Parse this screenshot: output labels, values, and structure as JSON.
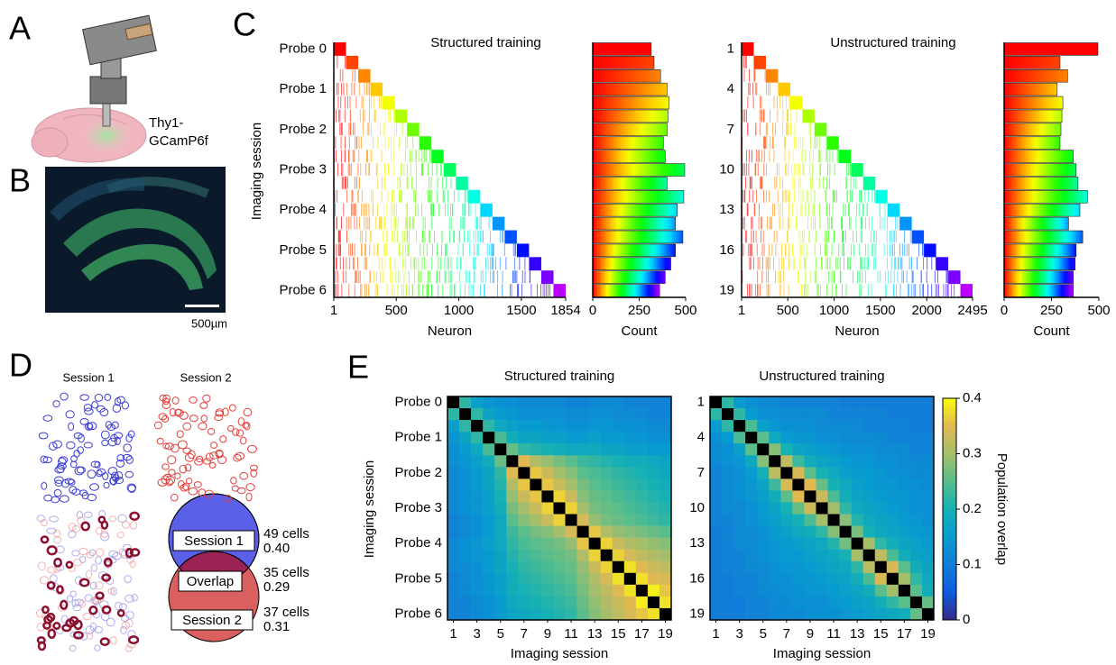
{
  "panel_a": {
    "label": "A",
    "text_line1": "Thy1-",
    "text_line2": "GCamP6f"
  },
  "panel_b": {
    "label": "B",
    "scale_bar": "500µm"
  },
  "panel_c": {
    "label": "C",
    "y_axis_label": "Imaging session",
    "structured": {
      "title": "Structured training",
      "y_labels": [
        "Probe 0",
        "Probe 1",
        "Probe 2",
        "Probe 3",
        "Probe 4",
        "Probe 5",
        "Probe 6"
      ],
      "x_label": "Neuron",
      "xlim": [
        1,
        1854
      ],
      "xticks": [
        1,
        500,
        1000,
        1500,
        1854
      ],
      "count_label": "Count",
      "count_lim": [
        0,
        500
      ],
      "count_ticks": [
        0,
        250,
        500
      ],
      "counts": [
        315,
        330,
        365,
        400,
        410,
        405,
        400,
        380,
        390,
        495,
        400,
        490,
        455,
        445,
        485,
        445,
        420,
        390,
        360
      ]
    },
    "unstructured": {
      "title": "Unstructured training",
      "y_labels": [
        1,
        4,
        7,
        10,
        13,
        16,
        19
      ],
      "x_label": "Neuron",
      "xlim": [
        1,
        2495
      ],
      "xticks": [
        1,
        500,
        1000,
        1500,
        2000,
        2495
      ],
      "count_label": "Count",
      "count_lim": [
        0,
        500
      ],
      "count_ticks": [
        0,
        250,
        500
      ],
      "counts": [
        495,
        295,
        335,
        280,
        310,
        305,
        300,
        295,
        365,
        380,
        390,
        440,
        400,
        340,
        415,
        380,
        375,
        365,
        365
      ]
    }
  },
  "panel_d": {
    "label": "D",
    "session1": "Session 1",
    "session2": "Session 2",
    "venn": [
      "Session 1",
      "Overlap",
      "Session 2"
    ],
    "stats": [
      [
        "49 cells",
        "0.40"
      ],
      [
        "35 cells",
        "0.29"
      ],
      [
        "37 cells",
        "0.31"
      ]
    ]
  },
  "panel_e": {
    "label": "E",
    "y_label": "Imaging session",
    "colorbar": {
      "label": "Population overlap",
      "lim": [
        0,
        0.4
      ],
      "ticks": [
        0,
        0.1,
        0.2,
        0.3,
        0.4
      ]
    },
    "structured": {
      "title": "Structured training",
      "x_label": "Imaging session",
      "xticks": [
        1,
        3,
        5,
        7,
        9,
        11,
        13,
        15,
        17,
        19
      ],
      "y_labels": [
        "Probe 0",
        "Probe 1",
        "Probe 2",
        "Probe 3",
        "Probe 4",
        "Probe 5",
        "Probe 6"
      ],
      "matrix": [
        [
          null,
          0.22,
          0.16,
          0.14,
          0.13,
          0.13,
          0.12,
          0.12,
          0.12,
          0.12,
          0.11,
          0.11,
          0.12,
          0.12,
          0.12,
          0.11,
          0.11,
          0.11,
          0.11
        ],
        [
          0.22,
          null,
          0.22,
          0.17,
          0.15,
          0.14,
          0.13,
          0.13,
          0.13,
          0.13,
          0.12,
          0.12,
          0.13,
          0.13,
          0.12,
          0.12,
          0.12,
          0.11,
          0.11
        ],
        [
          0.16,
          0.22,
          null,
          0.22,
          0.18,
          0.16,
          0.15,
          0.15,
          0.14,
          0.14,
          0.13,
          0.13,
          0.14,
          0.14,
          0.13,
          0.13,
          0.13,
          0.12,
          0.12
        ],
        [
          0.14,
          0.17,
          0.22,
          null,
          0.24,
          0.19,
          0.17,
          0.17,
          0.16,
          0.16,
          0.15,
          0.15,
          0.16,
          0.15,
          0.15,
          0.14,
          0.14,
          0.13,
          0.13
        ],
        [
          0.13,
          0.15,
          0.18,
          0.24,
          null,
          0.26,
          0.22,
          0.21,
          0.2,
          0.19,
          0.18,
          0.18,
          0.18,
          0.17,
          0.17,
          0.16,
          0.16,
          0.15,
          0.15
        ],
        [
          0.13,
          0.14,
          0.16,
          0.19,
          0.26,
          null,
          0.35,
          0.31,
          0.29,
          0.27,
          0.25,
          0.23,
          0.22,
          0.21,
          0.2,
          0.19,
          0.19,
          0.18,
          0.17
        ],
        [
          0.12,
          0.13,
          0.15,
          0.17,
          0.22,
          0.35,
          null,
          0.36,
          0.33,
          0.3,
          0.28,
          0.25,
          0.24,
          0.23,
          0.22,
          0.21,
          0.2,
          0.19,
          0.18
        ],
        [
          0.12,
          0.13,
          0.15,
          0.17,
          0.21,
          0.31,
          0.36,
          null,
          0.36,
          0.33,
          0.3,
          0.27,
          0.25,
          0.24,
          0.23,
          0.22,
          0.21,
          0.2,
          0.19
        ],
        [
          0.12,
          0.13,
          0.14,
          0.16,
          0.2,
          0.29,
          0.33,
          0.36,
          null,
          0.37,
          0.33,
          0.28,
          0.26,
          0.25,
          0.24,
          0.23,
          0.22,
          0.21,
          0.2
        ],
        [
          0.12,
          0.13,
          0.14,
          0.16,
          0.19,
          0.27,
          0.3,
          0.33,
          0.37,
          null,
          0.37,
          0.3,
          0.27,
          0.26,
          0.25,
          0.24,
          0.23,
          0.22,
          0.21
        ],
        [
          0.11,
          0.12,
          0.13,
          0.15,
          0.18,
          0.25,
          0.28,
          0.3,
          0.33,
          0.37,
          null,
          0.34,
          0.29,
          0.27,
          0.26,
          0.25,
          0.24,
          0.23,
          0.22
        ],
        [
          0.11,
          0.12,
          0.13,
          0.15,
          0.18,
          0.23,
          0.25,
          0.27,
          0.28,
          0.3,
          0.34,
          null,
          0.36,
          0.31,
          0.29,
          0.28,
          0.27,
          0.26,
          0.25
        ],
        [
          0.12,
          0.13,
          0.14,
          0.16,
          0.18,
          0.22,
          0.24,
          0.25,
          0.26,
          0.27,
          0.29,
          0.36,
          null,
          0.37,
          0.33,
          0.31,
          0.3,
          0.29,
          0.28
        ],
        [
          0.12,
          0.13,
          0.14,
          0.15,
          0.17,
          0.21,
          0.23,
          0.24,
          0.25,
          0.26,
          0.27,
          0.31,
          0.37,
          null,
          0.37,
          0.34,
          0.32,
          0.31,
          0.3
        ],
        [
          0.12,
          0.12,
          0.13,
          0.15,
          0.17,
          0.2,
          0.22,
          0.23,
          0.24,
          0.25,
          0.26,
          0.29,
          0.33,
          0.37,
          null,
          0.38,
          0.35,
          0.33,
          0.32
        ],
        [
          0.11,
          0.12,
          0.13,
          0.14,
          0.16,
          0.19,
          0.21,
          0.22,
          0.23,
          0.24,
          0.25,
          0.28,
          0.31,
          0.34,
          0.38,
          null,
          0.38,
          0.35,
          0.34
        ],
        [
          0.11,
          0.12,
          0.13,
          0.14,
          0.16,
          0.19,
          0.2,
          0.21,
          0.22,
          0.23,
          0.24,
          0.27,
          0.3,
          0.32,
          0.35,
          0.38,
          null,
          0.39,
          0.36
        ],
        [
          0.11,
          0.11,
          0.12,
          0.13,
          0.15,
          0.18,
          0.19,
          0.2,
          0.21,
          0.22,
          0.23,
          0.26,
          0.29,
          0.31,
          0.33,
          0.35,
          0.39,
          null,
          0.38
        ],
        [
          0.11,
          0.11,
          0.12,
          0.13,
          0.15,
          0.17,
          0.18,
          0.19,
          0.2,
          0.21,
          0.22,
          0.25,
          0.28,
          0.3,
          0.32,
          0.34,
          0.36,
          0.38,
          null
        ]
      ]
    },
    "unstructured": {
      "title": "Unstructured training",
      "x_label": "Imaging session",
      "xticks": [
        1,
        3,
        5,
        7,
        9,
        11,
        13,
        15,
        17,
        19
      ],
      "y_labels": [
        1,
        4,
        7,
        10,
        13,
        16,
        19
      ],
      "matrix": [
        [
          null,
          0.22,
          0.15,
          0.13,
          0.12,
          0.12,
          0.11,
          0.11,
          0.11,
          0.11,
          0.11,
          0.1,
          0.1,
          0.1,
          0.1,
          0.1,
          0.1,
          0.1,
          0.1
        ],
        [
          0.22,
          null,
          0.22,
          0.15,
          0.13,
          0.13,
          0.12,
          0.12,
          0.12,
          0.12,
          0.11,
          0.11,
          0.11,
          0.11,
          0.11,
          0.1,
          0.1,
          0.1,
          0.1
        ],
        [
          0.15,
          0.22,
          null,
          0.24,
          0.16,
          0.14,
          0.13,
          0.13,
          0.13,
          0.12,
          0.12,
          0.12,
          0.12,
          0.11,
          0.11,
          0.11,
          0.11,
          0.1,
          0.1
        ],
        [
          0.13,
          0.15,
          0.24,
          null,
          0.25,
          0.18,
          0.15,
          0.14,
          0.14,
          0.13,
          0.13,
          0.12,
          0.12,
          0.12,
          0.12,
          0.11,
          0.11,
          0.11,
          0.11
        ],
        [
          0.12,
          0.13,
          0.16,
          0.25,
          null,
          0.28,
          0.2,
          0.17,
          0.16,
          0.15,
          0.14,
          0.13,
          0.13,
          0.13,
          0.12,
          0.12,
          0.12,
          0.11,
          0.11
        ],
        [
          0.12,
          0.13,
          0.14,
          0.18,
          0.28,
          null,
          0.32,
          0.23,
          0.19,
          0.17,
          0.16,
          0.15,
          0.14,
          0.14,
          0.13,
          0.13,
          0.12,
          0.12,
          0.12
        ],
        [
          0.11,
          0.12,
          0.13,
          0.15,
          0.2,
          0.32,
          null,
          0.34,
          0.25,
          0.2,
          0.18,
          0.16,
          0.15,
          0.15,
          0.14,
          0.13,
          0.13,
          0.12,
          0.12
        ],
        [
          0.11,
          0.12,
          0.13,
          0.14,
          0.17,
          0.23,
          0.34,
          null,
          0.35,
          0.26,
          0.2,
          0.18,
          0.16,
          0.15,
          0.14,
          0.14,
          0.13,
          0.13,
          0.12
        ],
        [
          0.11,
          0.12,
          0.13,
          0.14,
          0.16,
          0.19,
          0.25,
          0.35,
          null,
          0.33,
          0.24,
          0.19,
          0.17,
          0.16,
          0.15,
          0.14,
          0.14,
          0.13,
          0.13
        ],
        [
          0.11,
          0.12,
          0.12,
          0.13,
          0.15,
          0.17,
          0.2,
          0.26,
          0.33,
          null,
          0.3,
          0.22,
          0.18,
          0.17,
          0.16,
          0.15,
          0.14,
          0.13,
          0.13
        ],
        [
          0.11,
          0.11,
          0.12,
          0.13,
          0.14,
          0.16,
          0.18,
          0.2,
          0.24,
          0.3,
          null,
          0.28,
          0.21,
          0.18,
          0.17,
          0.16,
          0.15,
          0.14,
          0.13
        ],
        [
          0.1,
          0.11,
          0.12,
          0.12,
          0.13,
          0.15,
          0.16,
          0.18,
          0.19,
          0.22,
          0.28,
          null,
          0.27,
          0.2,
          0.18,
          0.17,
          0.16,
          0.15,
          0.14
        ],
        [
          0.1,
          0.11,
          0.12,
          0.12,
          0.13,
          0.14,
          0.15,
          0.16,
          0.17,
          0.18,
          0.21,
          0.27,
          null,
          0.3,
          0.22,
          0.19,
          0.17,
          0.16,
          0.15
        ],
        [
          0.1,
          0.11,
          0.11,
          0.12,
          0.13,
          0.14,
          0.15,
          0.15,
          0.16,
          0.17,
          0.18,
          0.2,
          0.3,
          null,
          0.32,
          0.24,
          0.19,
          0.17,
          0.16
        ],
        [
          0.1,
          0.11,
          0.11,
          0.12,
          0.12,
          0.13,
          0.14,
          0.14,
          0.15,
          0.16,
          0.17,
          0.18,
          0.22,
          0.32,
          null,
          0.34,
          0.25,
          0.19,
          0.17
        ],
        [
          0.1,
          0.1,
          0.11,
          0.11,
          0.12,
          0.13,
          0.13,
          0.14,
          0.14,
          0.15,
          0.16,
          0.17,
          0.19,
          0.24,
          0.34,
          null,
          0.3,
          0.22,
          0.18
        ],
        [
          0.1,
          0.1,
          0.11,
          0.11,
          0.12,
          0.12,
          0.13,
          0.13,
          0.14,
          0.14,
          0.15,
          0.16,
          0.17,
          0.19,
          0.25,
          0.3,
          null,
          0.25,
          0.19
        ],
        [
          0.1,
          0.1,
          0.1,
          0.11,
          0.11,
          0.12,
          0.12,
          0.13,
          0.13,
          0.13,
          0.14,
          0.15,
          0.16,
          0.17,
          0.19,
          0.22,
          0.25,
          null,
          0.26
        ],
        [
          0.1,
          0.1,
          0.1,
          0.11,
          0.11,
          0.12,
          0.12,
          0.12,
          0.13,
          0.13,
          0.13,
          0.14,
          0.15,
          0.16,
          0.17,
          0.18,
          0.19,
          0.26,
          null
        ]
      ]
    }
  }
}
